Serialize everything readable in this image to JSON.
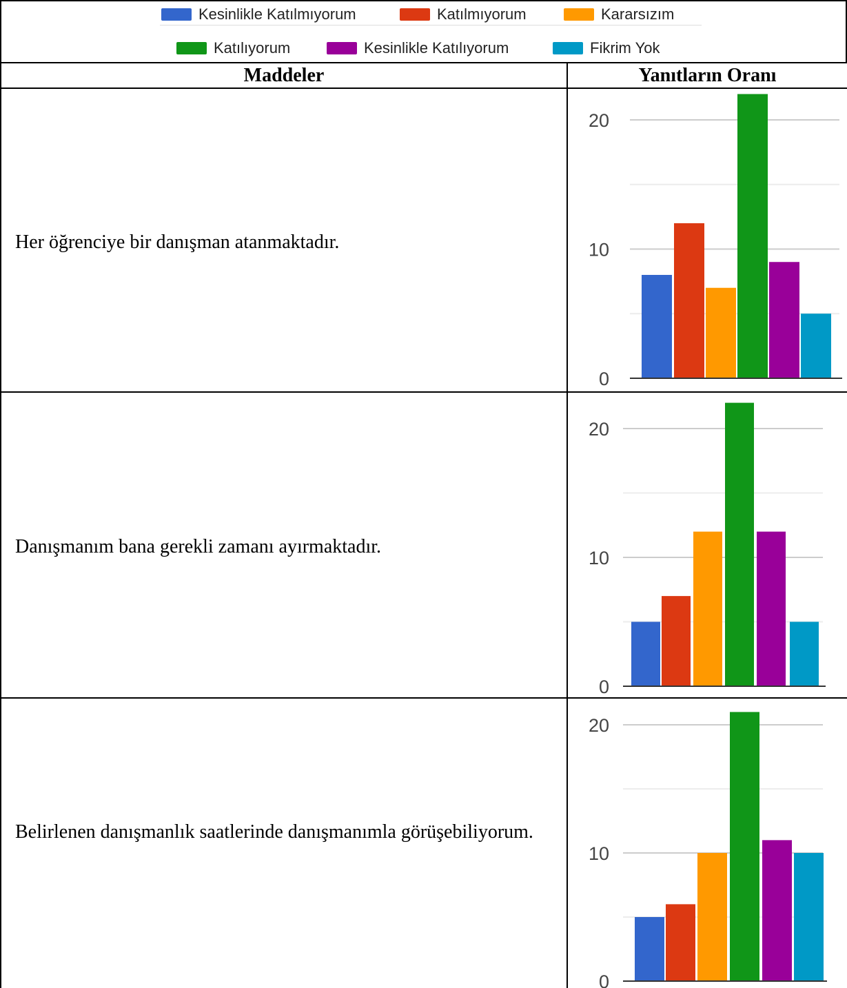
{
  "legend": [
    {
      "label": "Kesinlikle Katılmıyorum",
      "color": "#3366cc"
    },
    {
      "label": "Katılmıyorum",
      "color": "#dc3912"
    },
    {
      "label": "Kararsızım",
      "color": "#ff9900"
    },
    {
      "label": "Katılıyorum",
      "color": "#109618"
    },
    {
      "label": "Kesinlikle Katılıyorum",
      "color": "#990099"
    },
    {
      "label": "Fikrim Yok",
      "color": "#0099c6"
    }
  ],
  "table": {
    "col1_header": "Maddeler",
    "col2_header": "Yanıtların Oranı"
  },
  "chart_data": [
    {
      "type": "bar",
      "item": "Her öğrenciye bir danışman atanmaktadır.",
      "categories": [
        "Kesinlikle Katılmıyorum",
        "Katılmıyorum",
        "Kararsızım",
        "Katılıyorum",
        "Kesinlikle Katılıyorum",
        "Fikrim Yok"
      ],
      "values": [
        8,
        12,
        7,
        22,
        9,
        5
      ],
      "yticks": [
        0,
        10,
        20
      ],
      "ylim": [
        0,
        22
      ],
      "grid": true
    },
    {
      "type": "bar",
      "item": "Danışmanım bana gerekli zamanı ayırmaktadır.",
      "categories": [
        "Kesinlikle Katılmıyorum",
        "Katılmıyorum",
        "Kararsızım",
        "Katılıyorum",
        "Kesinlikle Katılıyorum",
        "Fikrim Yok"
      ],
      "values": [
        5,
        7,
        12,
        22,
        12,
        5
      ],
      "yticks": [
        0,
        10,
        20
      ],
      "ylim": [
        0,
        22
      ],
      "grid": true
    },
    {
      "type": "bar",
      "item": "Belirlenen danışmanlık saatlerinde danışmanımla görüşebiliyorum.",
      "categories": [
        "Kesinlikle Katılmıyorum",
        "Katılmıyorum",
        "Kararsızım",
        "Katılıyorum",
        "Kesinlikle Katılıyorum",
        "Fikrim Yok"
      ],
      "values": [
        5,
        6,
        10,
        21,
        11,
        10
      ],
      "yticks": [
        0,
        10,
        20
      ],
      "ylim": [
        0,
        21
      ],
      "grid": true
    }
  ]
}
